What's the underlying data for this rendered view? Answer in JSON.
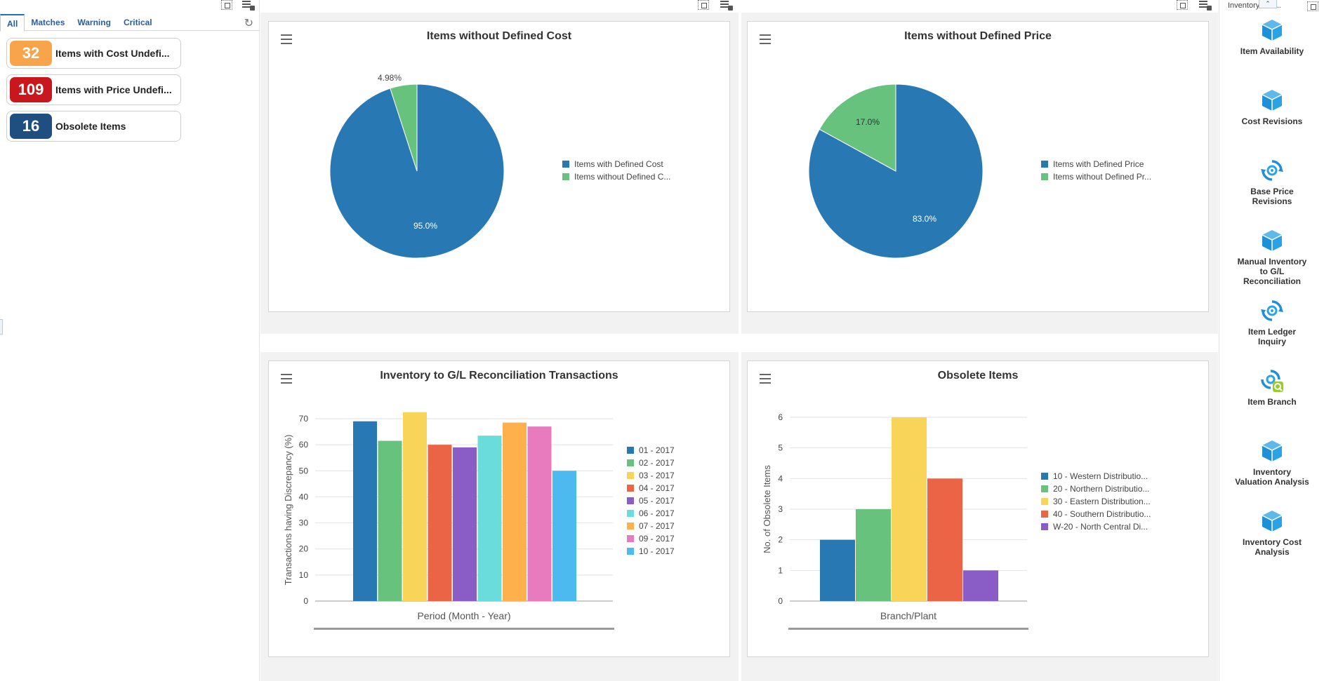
{
  "watchlist": {
    "tabs": [
      "All",
      "Matches",
      "Warning",
      "Critical"
    ],
    "items": [
      {
        "count": "32",
        "label": "Items with Cost Undefi...",
        "color": "#f7a44a"
      },
      {
        "count": "109",
        "label": "Items with Price Undefi...",
        "color": "#c8171d"
      },
      {
        "count": "16",
        "label": "Obsolete Items",
        "color": "#1f4e80"
      }
    ]
  },
  "charts": {
    "cost": {
      "title": "Items without Defined Cost",
      "legend": [
        "Items with Defined Cost",
        "Items without Defined C..."
      ],
      "labels": [
        "95.0%",
        "4.98%"
      ]
    },
    "price": {
      "title": "Items without Defined Price",
      "legend": [
        "Items with Defined Price",
        "Items without Defined Pr..."
      ],
      "labels": [
        "83.0%",
        "17.0%"
      ]
    },
    "recon": {
      "title": "Inventory to G/L Reconciliation Transactions",
      "xlabel": "Period (Month - Year)",
      "ylabel": "Transactions having Discrepancy (%)",
      "ticks": [
        "0",
        "10",
        "20",
        "30",
        "40",
        "50",
        "60",
        "70"
      ]
    },
    "obsolete": {
      "title": "Obsolete Items",
      "xlabel": "Branch/Plant",
      "ylabel": "No. of Obsolete Items",
      "ticks": [
        "0",
        "1",
        "2",
        "3",
        "4",
        "5",
        "6"
      ]
    }
  },
  "chart_data": [
    {
      "type": "pie",
      "title": "Items without Defined Cost",
      "categories": [
        "Items with Defined Cost",
        "Items without Defined C..."
      ],
      "values": [
        95.0,
        4.98
      ],
      "colors": [
        "#2878b4",
        "#67c27d"
      ]
    },
    {
      "type": "pie",
      "title": "Items without Defined Price",
      "categories": [
        "Items with Defined Price",
        "Items without Defined Pr..."
      ],
      "values": [
        83.0,
        17.0
      ],
      "colors": [
        "#2878b4",
        "#67c27d"
      ]
    },
    {
      "type": "bar",
      "title": "Inventory to G/L Reconciliation Transactions",
      "xlabel": "Period (Month - Year)",
      "ylabel": "Transactions having Discrepancy (%)",
      "ylim": [
        0,
        70
      ],
      "series": [
        {
          "name": "01 - 2017",
          "value": 69,
          "color": "#2878b4"
        },
        {
          "name": "02 - 2017",
          "value": 61.5,
          "color": "#67c27d"
        },
        {
          "name": "03 - 2017",
          "value": 72.5,
          "color": "#f8d458"
        },
        {
          "name": "04 - 2017",
          "value": 60,
          "color": "#ec6446"
        },
        {
          "name": "05 - 2017",
          "value": 59,
          "color": "#8a5cc6"
        },
        {
          "name": "06 - 2017",
          "value": 63.5,
          "color": "#6bdcdc"
        },
        {
          "name": "07 - 2017",
          "value": 68.5,
          "color": "#fdb04c"
        },
        {
          "name": "09 - 2017",
          "value": 67,
          "color": "#e77bbd"
        },
        {
          "name": "10 - 2017",
          "value": 50,
          "color": "#4cbaef"
        }
      ],
      "grid": true,
      "legend": "right"
    },
    {
      "type": "bar",
      "title": "Obsolete Items",
      "xlabel": "Branch/Plant",
      "ylabel": "No. of Obsolete Items",
      "ylim": [
        0,
        6
      ],
      "series": [
        {
          "name": "10 - Western Distributio...",
          "value": 2,
          "color": "#2878b4"
        },
        {
          "name": "20 - Northern Distributio...",
          "value": 3,
          "color": "#67c27d"
        },
        {
          "name": "30 - Eastern Distribution...",
          "value": 6,
          "color": "#f8d458"
        },
        {
          "name": "40 - Southern Distributio...",
          "value": 4,
          "color": "#ec6446"
        },
        {
          "name": "W-20 - North Central Di...",
          "value": 1,
          "color": "#8a5cc6"
        }
      ],
      "grid": true,
      "legend": "right"
    }
  ],
  "springboard": {
    "header": "Inventory    oun...",
    "tiles": [
      {
        "label": "Item Availability",
        "icon": "cube-icon"
      },
      {
        "label": "Cost Revisions",
        "icon": "cube-icon"
      },
      {
        "label": "Base Price Revisions",
        "icon": "refresh-gear-icon"
      },
      {
        "label": "Manual Inventory to G/L Reconciliation",
        "icon": "cube-icon"
      },
      {
        "label": "Item Ledger Inquiry",
        "icon": "refresh-gear-icon"
      },
      {
        "label": "Item Branch",
        "icon": "gear-search-icon"
      },
      {
        "label": "Inventory Valuation Analysis",
        "icon": "cube-icon"
      },
      {
        "label": "Inventory Cost Analysis",
        "icon": "cube-icon"
      }
    ]
  }
}
